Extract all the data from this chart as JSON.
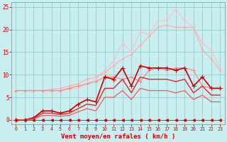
{
  "x": [
    0,
    1,
    2,
    3,
    4,
    5,
    6,
    7,
    8,
    9,
    10,
    11,
    12,
    13,
    14,
    15,
    16,
    17,
    18,
    19,
    20,
    21,
    22,
    23
  ],
  "lines": [
    {
      "y": [
        6.5,
        6.5,
        6.5,
        6.5,
        6.5,
        6.5,
        6.8,
        7.0,
        8.0,
        9.0,
        11.0,
        13.0,
        17.0,
        15.0,
        19.5,
        19.0,
        22.0,
        22.0,
        24.5,
        22.0,
        20.5,
        17.0,
        15.5,
        11.5
      ],
      "color": "#ffbbcc",
      "marker": "+",
      "linewidth": 0.8,
      "markersize": 3
    },
    {
      "y": [
        6.5,
        6.5,
        6.5,
        6.5,
        6.8,
        7.0,
        7.5,
        8.0,
        9.0,
        9.5,
        10.5,
        12.0,
        13.5,
        14.5,
        16.5,
        18.5,
        20.5,
        21.0,
        20.5,
        20.5,
        20.5,
        15.5,
        13.5,
        11.0
      ],
      "color": "#ffaaaa",
      "marker": "+",
      "linewidth": 0.8,
      "markersize": 3
    },
    {
      "y": [
        6.5,
        6.5,
        6.5,
        6.5,
        6.5,
        6.5,
        7.0,
        7.5,
        8.0,
        8.5,
        9.5,
        9.5,
        9.0,
        9.5,
        8.5,
        11.0,
        11.5,
        11.0,
        11.5,
        11.5,
        11.0,
        7.5,
        7.0,
        7.0
      ],
      "color": "#ff8888",
      "marker": "+",
      "linewidth": 0.9,
      "markersize": 3
    },
    {
      "y": [
        0.0,
        0.0,
        0.5,
        2.0,
        2.0,
        1.5,
        2.0,
        3.5,
        4.5,
        4.0,
        9.5,
        9.0,
        11.5,
        7.5,
        12.0,
        11.5,
        11.5,
        11.5,
        11.0,
        11.5,
        7.5,
        9.5,
        7.0,
        7.0
      ],
      "color": "#cc0000",
      "marker": "+",
      "linewidth": 1.2,
      "markersize": 4
    },
    {
      "y": [
        0.0,
        0.0,
        0.3,
        1.5,
        1.5,
        1.2,
        1.5,
        2.5,
        3.5,
        3.2,
        7.0,
        7.0,
        9.0,
        6.0,
        9.5,
        9.0,
        9.0,
        9.0,
        8.5,
        9.0,
        6.0,
        7.5,
        5.5,
        5.5
      ],
      "color": "#ee2222",
      "marker": null,
      "linewidth": 1.0,
      "markersize": 0
    },
    {
      "y": [
        0.0,
        0.0,
        0.2,
        1.0,
        1.0,
        0.8,
        1.0,
        1.8,
        2.5,
        2.0,
        5.0,
        5.0,
        6.5,
        4.5,
        7.0,
        6.5,
        6.5,
        6.5,
        6.0,
        6.5,
        4.5,
        5.5,
        4.0,
        4.0
      ],
      "color": "#ff5555",
      "marker": null,
      "linewidth": 0.9,
      "markersize": 0
    },
    {
      "y": [
        0.0,
        0.0,
        0.0,
        0.0,
        0.0,
        0.0,
        0.0,
        0.0,
        0.0,
        0.0,
        0.0,
        0.0,
        0.0,
        0.0,
        0.0,
        0.0,
        0.0,
        0.0,
        0.0,
        0.0,
        0.0,
        0.0,
        0.0,
        0.0
      ],
      "color": "#cc0000",
      "marker": "<",
      "linewidth": 0.5,
      "markersize": 2.5
    }
  ],
  "xlabel": "Vent moyen/en rafales ( km/h )",
  "xlim": [
    -0.5,
    23.5
  ],
  "ylim": [
    -1,
    26
  ],
  "yticks": [
    0,
    5,
    10,
    15,
    20,
    25
  ],
  "xticks": [
    0,
    1,
    2,
    3,
    4,
    5,
    6,
    7,
    8,
    9,
    10,
    11,
    12,
    13,
    14,
    15,
    16,
    17,
    18,
    19,
    20,
    21,
    22,
    23
  ],
  "background_color": "#c8eef0",
  "grid_color": "#99cccc",
  "tick_color": "#cc0000",
  "label_color": "#cc0000"
}
